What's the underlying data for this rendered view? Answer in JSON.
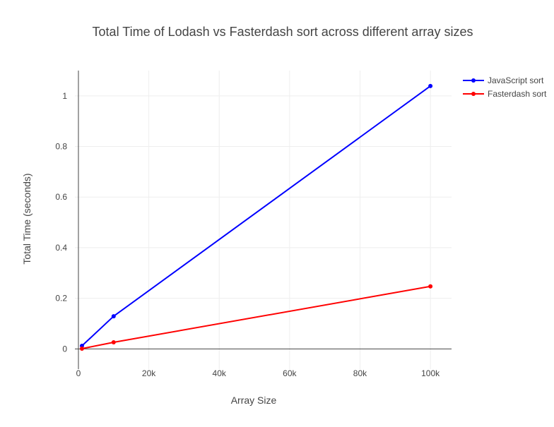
{
  "chart_data": {
    "type": "line",
    "title": "Total Time of Lodash vs Fasterdash sort across different array sizes",
    "xlabel": "Array Size",
    "ylabel": "Total Time (seconds)",
    "xlim": [
      -1000,
      106000
    ],
    "ylim": [
      -0.08,
      1.1
    ],
    "x_ticks": [
      0,
      20000,
      40000,
      60000,
      80000,
      100000
    ],
    "x_tick_labels": [
      "0",
      "20k",
      "40k",
      "60k",
      "80k",
      "100k"
    ],
    "y_ticks": [
      0,
      0.2,
      0.4,
      0.6,
      0.8,
      1
    ],
    "y_tick_labels": [
      "0",
      "0.2",
      "0.4",
      "0.6",
      "0.8",
      "1"
    ],
    "grid": true,
    "legend": "top-right",
    "series": [
      {
        "name": "JavaScript sort",
        "color": "#0000ff",
        "x": [
          1000,
          10000,
          100000
        ],
        "y": [
          0.012,
          0.129,
          1.039
        ]
      },
      {
        "name": "Fasterdash sort",
        "color": "#ff0000",
        "x": [
          1000,
          10000,
          100000
        ],
        "y": [
          0.001,
          0.026,
          0.247
        ]
      }
    ]
  }
}
